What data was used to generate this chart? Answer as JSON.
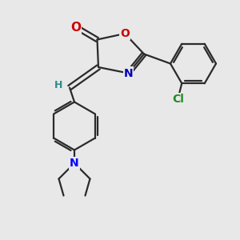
{
  "bg_color": "#e8e8e8",
  "bond_color": "#2a2a2a",
  "atom_colors": {
    "O": "#cc0000",
    "N_oxazole": "#0000bb",
    "N_amine": "#0000ff",
    "Cl": "#228b22",
    "H": "#2e8b8b",
    "C": "#2a2a2a"
  },
  "font_size": 10,
  "line_width": 1.6
}
